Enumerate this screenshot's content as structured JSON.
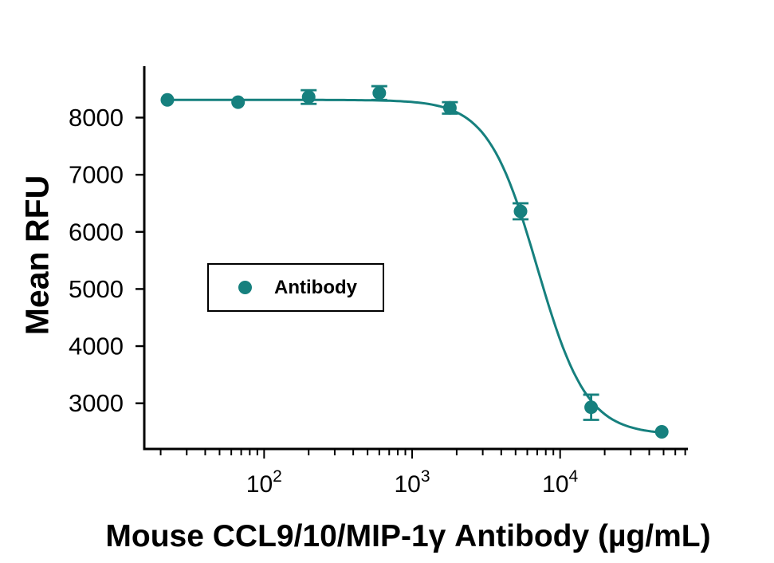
{
  "figure": {
    "background_color": "#ffffff",
    "axis_color": "#000000"
  },
  "chart_data": {
    "type": "scatter",
    "title": "",
    "xlabel": "Mouse CCL9/10/MIP-1γ Antibody (µg/mL)",
    "ylabel": "Mean RFU",
    "x_scale": "log",
    "y_scale": "linear",
    "xlim": [
      15.5,
      73000
    ],
    "ylim": [
      2200,
      8900
    ],
    "grid": false,
    "y_ticks": [
      3000,
      4000,
      5000,
      6000,
      7000,
      8000
    ],
    "x_major_ticks": [
      100,
      1000,
      10000
    ],
    "x_major_tick_labels": [
      {
        "base": "10",
        "exp": "2"
      },
      {
        "base": "10",
        "exp": "3"
      },
      {
        "base": "10",
        "exp": "4"
      }
    ],
    "legend": {
      "label": "Antibody",
      "position": "center-left"
    },
    "series": [
      {
        "name": "Antibody",
        "color": "#16807E",
        "marker": "circle",
        "points": [
          {
            "x": 22.2,
            "y": 8310,
            "err": 0
          },
          {
            "x": 66.7,
            "y": 8270,
            "err": 0
          },
          {
            "x": 200,
            "y": 8360,
            "err": 120
          },
          {
            "x": 600,
            "y": 8430,
            "err": 120
          },
          {
            "x": 1800,
            "y": 8170,
            "err": 100
          },
          {
            "x": 5400,
            "y": 6360,
            "err": 140
          },
          {
            "x": 16200,
            "y": 2930,
            "err": 220
          },
          {
            "x": 48600,
            "y": 2500,
            "err": 0
          }
        ],
        "fit_curve": {
          "model": "4PL",
          "top": 8310,
          "bottom": 2450,
          "ec50": 7000,
          "hill": 2.6,
          "x_range": [
            22.2,
            48600
          ]
        }
      }
    ]
  }
}
